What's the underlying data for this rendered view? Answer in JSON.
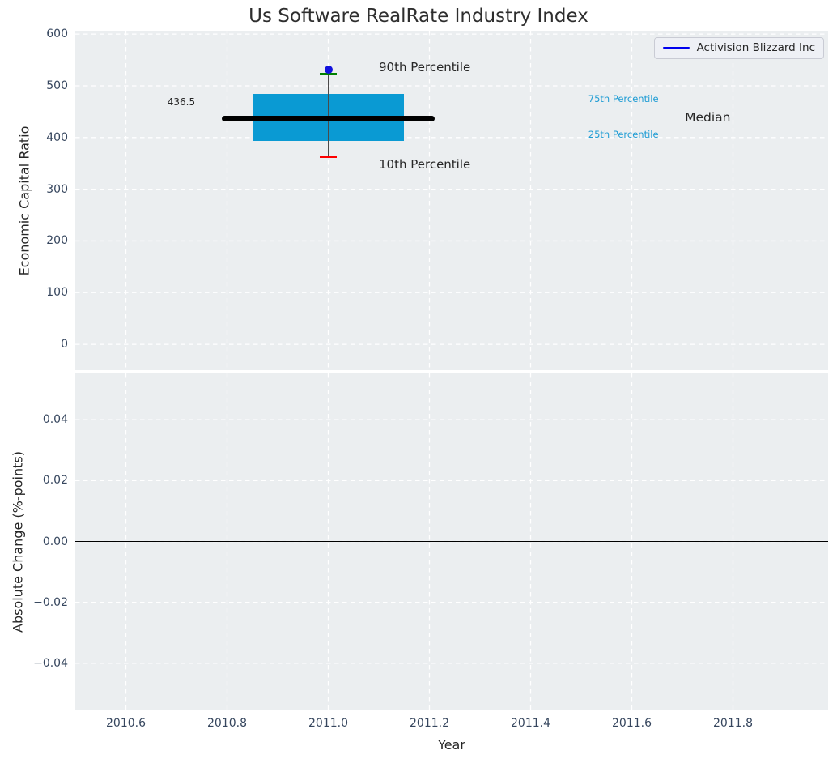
{
  "title": "Us Software RealRate Industry Index",
  "legend": {
    "label": "Activision Blizzard Inc"
  },
  "colors": {
    "axes_background": "#ebeef0",
    "grid": "#ffffff",
    "tick_text": "#36465e",
    "label_text": "#262626",
    "title_text": "#2e2e2e",
    "box_fill": "#0a9ad3",
    "median_line": "#000000",
    "whisker": "#4a4a4a",
    "cap_90th": "#008000",
    "cap_10th": "#fe0000",
    "company_dot": "#1111dd",
    "legend_line": "#0000ee",
    "percentile_text": "#1e9cd4",
    "zero_line": "#000000"
  },
  "chart_data": [
    {
      "type": "boxplot",
      "title": "Us Software RealRate Industry Index",
      "ylabel": "Economic Capital Ratio",
      "xlabel": "",
      "xlim": [
        2010.5,
        2011.988
      ],
      "ylim": [
        -50,
        606.5
      ],
      "grid": true,
      "legend_position": "upper right",
      "yticks": [
        {
          "v": 0,
          "label": "0"
        },
        {
          "v": 100,
          "label": "100"
        },
        {
          "v": 200,
          "label": "200"
        },
        {
          "v": 300,
          "label": "300"
        },
        {
          "v": 400,
          "label": "400"
        },
        {
          "v": 500,
          "label": "500"
        },
        {
          "v": 600,
          "label": "600"
        }
      ],
      "xticks": [],
      "box": {
        "x": 2011.0,
        "p10": 363,
        "q1": 394,
        "median": 436.5,
        "q3": 485,
        "p90": 523,
        "company_value": 531,
        "box_width_years": 0.3,
        "median_width_years": 0.42,
        "cap_width_years": 0.034
      },
      "annotations": [
        {
          "name": "median-value-label",
          "text": "436.5",
          "x": 2010.682,
          "y": 469,
          "size": 12,
          "color_key": "label_text"
        },
        {
          "name": "p90-label",
          "text": "90th Percentile",
          "x": 2011.1,
          "y": 536,
          "size": 15,
          "color_key": "label_text"
        },
        {
          "name": "p10-label",
          "text": "10th Percentile",
          "x": 2011.1,
          "y": 348,
          "size": 15,
          "color_key": "label_text"
        },
        {
          "name": "p75-label",
          "text": "75th Percentile",
          "x": 2011.514,
          "y": 475,
          "size": 11.5,
          "color_key": "percentile_text"
        },
        {
          "name": "p25-label",
          "text": "25th Percentile",
          "x": 2011.514,
          "y": 406,
          "size": 11.5,
          "color_key": "percentile_text"
        },
        {
          "name": "median-label",
          "text": "Median",
          "x": 2011.705,
          "y": 439,
          "size": 15.5,
          "color_key": "label_text"
        }
      ]
    },
    {
      "type": "line",
      "title": "",
      "ylabel": "Absolute Change (%-points)",
      "xlabel": "Year",
      "xlim": [
        2010.5,
        2011.988
      ],
      "ylim": [
        -0.0552,
        0.0552
      ],
      "grid": true,
      "zero_line": 0.0,
      "yticks": [
        {
          "v": 0.04,
          "label": "0.04"
        },
        {
          "v": 0.02,
          "label": "0.02"
        },
        {
          "v": 0.0,
          "label": "0.00"
        },
        {
          "v": -0.02,
          "label": "−0.02"
        },
        {
          "v": -0.04,
          "label": "−0.04"
        }
      ],
      "xticks": [
        {
          "v": 2010.6,
          "label": "2010.6"
        },
        {
          "v": 2010.8,
          "label": "2010.8"
        },
        {
          "v": 2011.0,
          "label": "2011.0"
        },
        {
          "v": 2011.2,
          "label": "2011.2"
        },
        {
          "v": 2011.4,
          "label": "2011.4"
        },
        {
          "v": 2011.6,
          "label": "2011.6"
        },
        {
          "v": 2011.8,
          "label": "2011.8"
        }
      ]
    }
  ]
}
